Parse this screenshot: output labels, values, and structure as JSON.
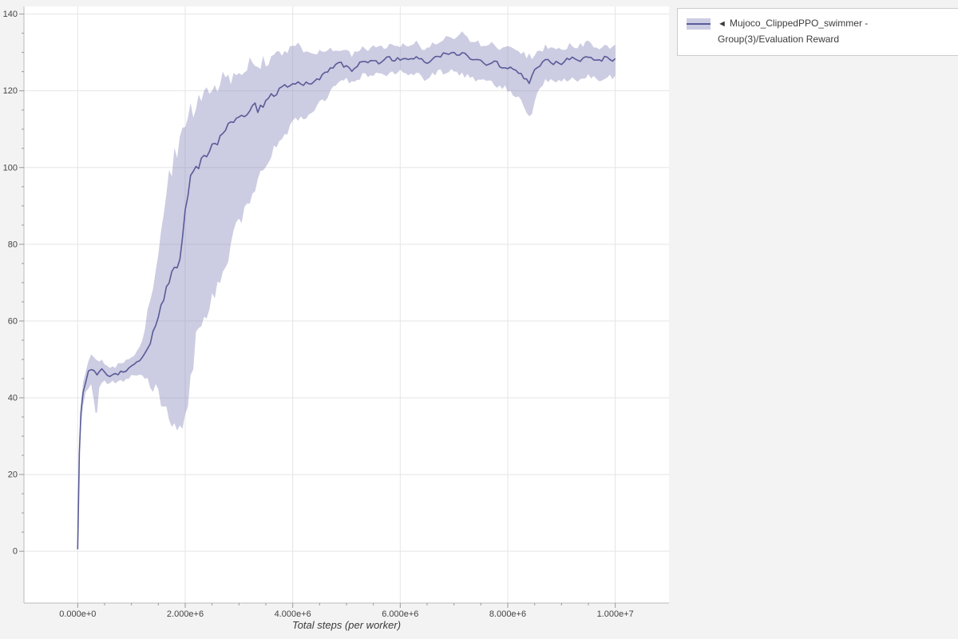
{
  "figure": {
    "background_color": "#f3f3f3",
    "plot_background": "#ffffff",
    "grid_color": "#e5e5e5",
    "axis_color": "#bbbbbb",
    "tick_color": "#999999",
    "tick_label_color": "#444444"
  },
  "legend": {
    "marker": "◄",
    "label": "Mujoco_ClippedPPO_swimmer - Group(3)/Evaluation Reward",
    "series_color": "#5a5a99",
    "band_color": "#8585bb",
    "band_opacity": 0.42
  },
  "chart_data": {
    "type": "line",
    "title": "",
    "xlabel": "Total steps (per worker)",
    "ylabel": "",
    "xlim": [
      -1000000,
      11000000
    ],
    "ylim": [
      -13.5,
      142
    ],
    "grid": true,
    "legend_position": "outside-top-right",
    "xticks": {
      "values": [
        0,
        2000000,
        4000000,
        6000000,
        8000000,
        10000000
      ],
      "labels": [
        "0.000e+0",
        "2.000e+6",
        "4.000e+6",
        "6.000e+6",
        "8.000e+6",
        "1.000e+7"
      ]
    },
    "yticks": {
      "values": [
        0,
        20,
        40,
        60,
        80,
        100,
        120,
        140
      ],
      "labels": [
        "0",
        "20",
        "40",
        "60",
        "80",
        "100",
        "120",
        "140"
      ]
    },
    "series": [
      {
        "name": "Mujoco_ClippedPPO_swimmer - Group(3)/Evaluation Reward",
        "x": [
          0,
          30000,
          60000,
          100000,
          150000,
          200000,
          250000,
          300000,
          330000,
          360000,
          400000,
          450000,
          500000,
          550000,
          600000,
          650000,
          700000,
          750000,
          800000,
          850000,
          900000,
          950000,
          1000000,
          1050000,
          1100000,
          1150000,
          1200000,
          1250000,
          1300000,
          1350000,
          1400000,
          1450000,
          1500000,
          1550000,
          1600000,
          1650000,
          1700000,
          1750000,
          1800000,
          1850000,
          1900000,
          1950000,
          2000000,
          2050000,
          2100000,
          2150000,
          2200000,
          2300000,
          2400000,
          2500000,
          2600000,
          2700000,
          2800000,
          2900000,
          3000000,
          3100000,
          3200000,
          3300000,
          3400000,
          3500000,
          3600000,
          3700000,
          3800000,
          3900000,
          4000000,
          4100000,
          4200000,
          4300000,
          4400000,
          4500000,
          4600000,
          4700000,
          4800000,
          4900000,
          5000000,
          5100000,
          5200000,
          5300000,
          5400000,
          5500000,
          5600000,
          5700000,
          5800000,
          5900000,
          6000000,
          6100000,
          6200000,
          6300000,
          6400000,
          6500000,
          6600000,
          6700000,
          6800000,
          6900000,
          7000000,
          7100000,
          7200000,
          7300000,
          7400000,
          7500000,
          7600000,
          7700000,
          7800000,
          7900000,
          8000000,
          8100000,
          8200000,
          8300000,
          8400000,
          8450000,
          8500000,
          8600000,
          8700000,
          8800000,
          8900000,
          9000000,
          9100000,
          9200000,
          9300000,
          9400000,
          9500000,
          9600000,
          9700000,
          9800000,
          9900000,
          10000000
        ],
        "mean": [
          0.5,
          26,
          36,
          41.5,
          44,
          46.5,
          47.8,
          47,
          46,
          46.5,
          47,
          47.2,
          46.3,
          46,
          45.8,
          46.3,
          45.9,
          46.4,
          46.6,
          46.4,
          47.1,
          47.4,
          48,
          48.4,
          49,
          49.3,
          50.6,
          51.8,
          53.6,
          55,
          57.2,
          59,
          61.3,
          63.6,
          66,
          68.2,
          70,
          71.4,
          73.2,
          75,
          77,
          82,
          89,
          93.5,
          96.5,
          98.6,
          100,
          101.8,
          103.4,
          105.2,
          107,
          108.4,
          110.1,
          111,
          112.6,
          113.4,
          115.2,
          116.2,
          115.4,
          117.1,
          118.2,
          119,
          120.2,
          121,
          121.6,
          122.1,
          121.4,
          121.9,
          122.6,
          123.4,
          124.6,
          125.4,
          126.6,
          127.1,
          126.4,
          125.6,
          126.6,
          127.4,
          127.6,
          128.1,
          127.4,
          128,
          128.6,
          127.9,
          128.4,
          127.9,
          128.5,
          129,
          128,
          127.4,
          128.6,
          129.1,
          129.4,
          130,
          129.6,
          129,
          129.6,
          128.4,
          128.1,
          127.4,
          127,
          127.6,
          127.1,
          126.4,
          126.1,
          125.4,
          125,
          123.9,
          122.4,
          123.6,
          125.1,
          127,
          128.4,
          127.6,
          127.1,
          127.4,
          128.1,
          128.4,
          127.9,
          128.6,
          129,
          128.4,
          128,
          128.5,
          128.1,
          128.4
        ],
        "lo": [
          0,
          24,
          33,
          38,
          41,
          42.5,
          43.5,
          40,
          35.5,
          37,
          42,
          44,
          44,
          44,
          44,
          44.5,
          44,
          44.5,
          44.5,
          44.5,
          45,
          45,
          45.5,
          46,
          46,
          46,
          46,
          45.5,
          45,
          44,
          43,
          42,
          41,
          40,
          39,
          37.5,
          36,
          35,
          34,
          33.5,
          33,
          34,
          36,
          40,
          45,
          50,
          55,
          60,
          63,
          66,
          70,
          74,
          78,
          82,
          86,
          89,
          92,
          95,
          98,
          101,
          104,
          106,
          108,
          110,
          112,
          113,
          113,
          114,
          115,
          116.5,
          118,
          120,
          122,
          123,
          123,
          122,
          123,
          124,
          124,
          124.5,
          124,
          124,
          125,
          124,
          125,
          124,
          124.5,
          125,
          123.5,
          123,
          124,
          125,
          125,
          125.5,
          125,
          124.5,
          124,
          123.5,
          123,
          122.5,
          122,
          122,
          121.5,
          121,
          120.5,
          119.5,
          118,
          116,
          113.5,
          115,
          118,
          121,
          123,
          122.5,
          122,
          122.5,
          123,
          123.5,
          123,
          123.5,
          124,
          123.5,
          123,
          123.5,
          123.5,
          124
        ],
        "hi": [
          1,
          28,
          38,
          44,
          47,
          49.5,
          51.5,
          51,
          50,
          50,
          50,
          50,
          49,
          48.5,
          48,
          48,
          48,
          48.5,
          48.5,
          49,
          49.5,
          50,
          50.5,
          51,
          52,
          53,
          55,
          58,
          62,
          66,
          70,
          74,
          78,
          83,
          88,
          93,
          97,
          100,
          103,
          105,
          107,
          109,
          111,
          113,
          114.5,
          115.5,
          116.5,
          118.5,
          119.5,
          120.5,
          121.5,
          122.5,
          123.5,
          124.5,
          125,
          126,
          127,
          128,
          127,
          128,
          128.5,
          129,
          130,
          131,
          131.5,
          132,
          131,
          130.5,
          130,
          130,
          130,
          130.5,
          131,
          131,
          130.5,
          129.5,
          130,
          131,
          131,
          131.5,
          131,
          131.5,
          132,
          132,
          132,
          131.5,
          132,
          132.5,
          131.5,
          131,
          132,
          133,
          133.5,
          134,
          134,
          134.5,
          135,
          133.5,
          133,
          132,
          131.5,
          132,
          131.5,
          131,
          131,
          130.5,
          130,
          129.5,
          129,
          129,
          129.5,
          130.5,
          131.5,
          131,
          130.5,
          131,
          131.5,
          132,
          131.5,
          132,
          132.5,
          132,
          131.5,
          132,
          131.5,
          132
        ]
      }
    ]
  }
}
